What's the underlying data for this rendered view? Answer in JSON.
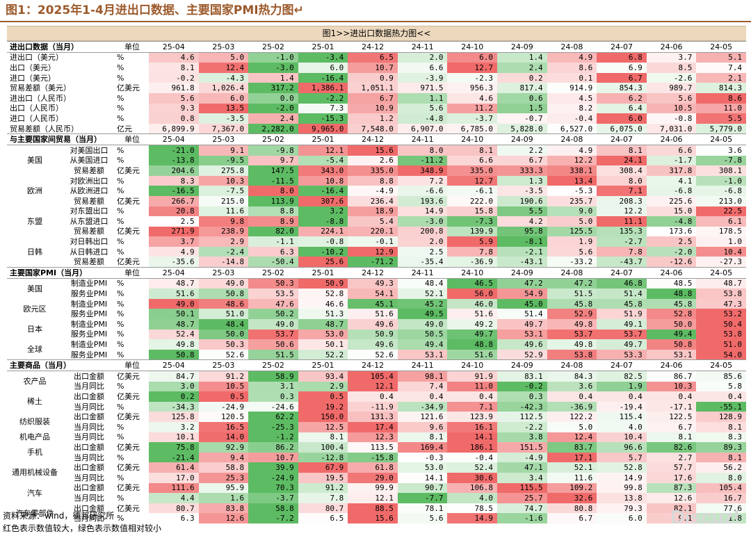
{
  "header": {
    "figure_title": "图1：2025年1-4月进出口数据、主要国家PMI热力图↵"
  },
  "table_title": "图1>>进出口数据热力图<<",
  "months": [
    "25-04",
    "25-03",
    "25-02",
    "25-01",
    "24-12",
    "24-11",
    "24-10",
    "24-09",
    "24-08",
    "24-07",
    "24-06",
    "24-05"
  ],
  "sections": [
    {
      "title": "进出口数据（当月）",
      "unit_header": "单位",
      "rows": [
        {
          "label": "进出口（美元）",
          "unit": "%",
          "values": [
            "4.6",
            "5.0",
            "-1.0",
            "-3.4",
            "6.5",
            "2.0",
            "6.0",
            "1.4",
            "4.9",
            "6.8",
            "3.7",
            "5.1"
          ]
        },
        {
          "label": "出口（美元）",
          "unit": "%",
          "values": [
            "8.1",
            "12.4",
            "-3.0",
            "6.0",
            "10.7",
            "6.6",
            "12.7",
            "2.4",
            "8.6",
            "6.9",
            "8.5",
            "7.4"
          ]
        },
        {
          "label": "进口（美元）",
          "unit": "%",
          "values": [
            "-0.2",
            "-4.3",
            "1.4",
            "-16.4",
            "0.9",
            "-3.9",
            "-2.3",
            "0.2",
            "0.1",
            "6.7",
            "-2.6",
            "2.1"
          ]
        },
        {
          "label": "贸易差额（美元）",
          "unit": "亿美元",
          "values": [
            "961.8",
            "1,026.4",
            "317.2",
            "1,386.1",
            "1,051.1",
            "971.5",
            "956.3",
            "817.4",
            "914.9",
            "854.3",
            "989.7",
            "814.3"
          ]
        },
        {
          "label": "进出口（人民币）",
          "unit": "%",
          "values": [
            "5.6",
            "6.0",
            "0.0",
            "-2.2",
            "6.7",
            "1.1",
            "4.6",
            "0.6",
            "4.5",
            "6.2",
            "5.6",
            "8.6"
          ]
        },
        {
          "label": "出口（人民币）",
          "unit": "%",
          "values": [
            "9.3",
            "13.5",
            "-2.0",
            "7.3",
            "10.9",
            "5.6",
            "11.2",
            "1.5",
            "8.2",
            "6.4",
            "10.5",
            "11.0"
          ]
        },
        {
          "label": "进口（人民币）",
          "unit": "%",
          "values": [
            "0.8",
            "-3.5",
            "2.4",
            "-15.3",
            "1.2",
            "-4.8",
            "-3.7",
            "-0.7",
            "-0.4",
            "6.0",
            "-0.8",
            "5.5"
          ]
        },
        {
          "label": "贸易差额（人民币）",
          "unit": "亿元",
          "values": [
            "6,899.9",
            "7,367.0",
            "2,282.0",
            "9,965.0",
            "7,548.0",
            "6,907.0",
            "6,785.0",
            "5,828.0",
            "6,527.0",
            "6,075.0",
            "7,031.0",
            "5,779.0"
          ]
        }
      ]
    },
    {
      "title": "与主要国家间贸易（当月）",
      "unit_header": "单位",
      "rows": [
        {
          "group": "美国",
          "label": "对美国出口",
          "unit": "%",
          "values": [
            "-21.0",
            "9.1",
            "-9.8",
            "12.1",
            "15.6",
            "8.0",
            "8.1",
            "2.2",
            "4.9",
            "8.1",
            "6.6",
            "3.6"
          ]
        },
        {
          "group": "",
          "label": "从美国进口",
          "unit": "%",
          "values": [
            "-13.8",
            "-9.5",
            "9.7",
            "-5.4",
            "2.6",
            "-11.2",
            "6.6",
            "6.7",
            "12.2",
            "24.1",
            "-1.7",
            "-7.8"
          ]
        },
        {
          "group": "",
          "label": "贸易差额",
          "unit": "亿美元",
          "values": [
            "204.6",
            "275.8",
            "147.5",
            "343.0",
            "335.0",
            "348.9",
            "335.0",
            "333.3",
            "338.1",
            "308.4",
            "317.8",
            "308.1"
          ]
        },
        {
          "group": "欧洲",
          "label": "对欧洲出口",
          "unit": "%",
          "values": [
            "8.3",
            "10.3",
            "-11.5",
            "10.8",
            "8.8",
            "7.2",
            "12.7",
            "1.3",
            "13.4",
            "8.0",
            "4.1",
            "-1.0"
          ]
        },
        {
          "group": "",
          "label": "从欧洲进口",
          "unit": "%",
          "values": [
            "-16.5",
            "-7.5",
            "8.0",
            "-16.4",
            "-4.9",
            "-6.6",
            "-6.1",
            "-3.5",
            "-5.3",
            "7.1",
            "-6.8",
            "-6.8"
          ]
        },
        {
          "group": "",
          "label": "贸易差额",
          "unit": "亿美元",
          "values": [
            "266.7",
            "215.0",
            "113.9",
            "307.6",
            "236.4",
            "193.6",
            "222.0",
            "190.6",
            "235.7",
            "208.3",
            "225.6",
            "213.0"
          ]
        },
        {
          "group": "东盟",
          "label": "对东盟出口",
          "unit": "%",
          "values": [
            "20.8",
            "11.6",
            "8.8",
            "3.2",
            "18.9",
            "14.9",
            "15.8",
            "5.5",
            "9.0",
            "12.2",
            "15.0",
            "22.5"
          ]
        },
        {
          "group": "",
          "label": "从东盟进口",
          "unit": "%",
          "values": [
            "2.5",
            "9.8",
            "8.9",
            "-8.8",
            "5.4",
            "-3.0",
            "-7.3",
            "4.2",
            "5.0",
            "11.1",
            "-4.8",
            "6.1"
          ]
        },
        {
          "group": "",
          "label": "贸易差额",
          "unit": "亿美元",
          "values": [
            "271.9",
            "238.9",
            "82.0",
            "224.1",
            "220.1",
            "200.8",
            "139.9",
            "95.8",
            "125.5",
            "135.3",
            "173.6",
            "178.5"
          ]
        },
        {
          "group": "日韩",
          "label": "对日韩出口",
          "unit": "%",
          "values": [
            "3.7",
            "2.9",
            "-1.1",
            "-0.8",
            "-0.1",
            "2.0",
            "5.9",
            "-8.1",
            "1.9",
            "-2.7",
            "2.5",
            "1.0"
          ]
        },
        {
          "group": "",
          "label": "从日韩进口",
          "unit": "%",
          "values": [
            "4.9",
            "-2.4",
            "6.3",
            "-10.2",
            "12.9",
            "2.5",
            "7.8",
            "-2.1",
            "5.6",
            "7.8",
            "-2.0",
            "10.4"
          ]
        },
        {
          "group": "",
          "label": "贸易差额",
          "unit": "亿美元",
          "values": [
            "-35.6",
            "-14.8",
            "-50.4",
            "25.6",
            "-71.2",
            "-35.4",
            "-36.9",
            "-43.1",
            "-33.2",
            "-43.7",
            "-12.6",
            "-27.3"
          ]
        }
      ]
    },
    {
      "title": "主要国家PMI（当月）",
      "unit_header": "单位",
      "rows": [
        {
          "group": "美国",
          "label": "制造业PMI",
          "unit": "%",
          "values": [
            "48.7",
            "49.0",
            "50.3",
            "50.9",
            "49.3",
            "48.4",
            "46.5",
            "47.2",
            "47.2",
            "46.8",
            "48.5",
            "48.7"
          ]
        },
        {
          "group": "",
          "label": "服务业PMI",
          "unit": "%",
          "values": [
            "51.6",
            "50.8",
            "53.5",
            "52.8",
            "54.1",
            "52.1",
            "56.0",
            "54.9",
            "51.5",
            "51.4",
            "48.8",
            "53.8"
          ]
        },
        {
          "group": "欧元区",
          "label": "制造业PMI",
          "unit": "%",
          "values": [
            "49.0",
            "48.6",
            "47.6",
            "46.6",
            "45.1",
            "45.2",
            "46.0",
            "45.0",
            "45.8",
            "45.8",
            "45.8",
            "47.3"
          ]
        },
        {
          "group": "",
          "label": "服务业PMI",
          "unit": "%",
          "values": [
            "50.1",
            "51.0",
            "50.2",
            "51.3",
            "51.6",
            "49.5",
            "51.6",
            "51.4",
            "52.9",
            "51.9",
            "52.8",
            "53.2"
          ]
        },
        {
          "group": "日本",
          "label": "制造业PMI",
          "unit": "%",
          "values": [
            "48.7",
            "48.4",
            "49.0",
            "48.7",
            "49.6",
            "49.0",
            "49.2",
            "49.7",
            "49.8",
            "49.1",
            "50.0",
            "50.4"
          ]
        },
        {
          "group": "",
          "label": "服务业PMI",
          "unit": "%",
          "values": [
            "52.4",
            "50.0",
            "53.7",
            "53.0",
            "50.9",
            "50.5",
            "49.7",
            "53.1",
            "53.7",
            "53.7",
            "49.4",
            "53.8"
          ]
        },
        {
          "group": "全球",
          "label": "制造业PMI",
          "unit": "%",
          "values": [
            "49.8",
            "50.3",
            "50.6",
            "50.1",
            "49.6",
            "49.4",
            "48.8",
            "49.6",
            "49.8",
            "49.7",
            "50.8",
            "51.0"
          ]
        },
        {
          "group": "",
          "label": "服务业PMI",
          "unit": "%",
          "values": [
            "50.8",
            "52.6",
            "51.5",
            "52.2",
            "52.6",
            "53.1",
            "51.6",
            "52.9",
            "53.8",
            "53.3",
            "53.1",
            "54.0"
          ]
        }
      ]
    },
    {
      "title": "主要商品（当月）",
      "unit_header": "单位",
      "rows": [
        {
          "group": "农产品",
          "label": "出口金额",
          "unit": "亿美元",
          "values": [
            "84.7",
            "91.2",
            "58.9",
            "93.4",
            "105.4",
            "98.1",
            "91.9",
            "83.1",
            "84.3",
            "82.5",
            "86.7",
            "85.6"
          ]
        },
        {
          "group": "",
          "label": "当月同比",
          "unit": "%",
          "values": [
            "3.0",
            "10.5",
            "3.1",
            "2.9",
            "12.1",
            "7.4",
            "11.0",
            "-0.2",
            "3.6",
            "1.9",
            "10.3",
            "5.8"
          ]
        },
        {
          "group": "稀土",
          "label": "出口金额",
          "unit": "亿美元",
          "values": [
            "0.2",
            "0.5",
            "0.3",
            "0.5",
            "0.4",
            "0.4",
            "0.4",
            "0.3",
            "0.4",
            "0.4",
            "0.4",
            "0.4"
          ]
        },
        {
          "group": "",
          "label": "当月同比",
          "unit": "%",
          "values": [
            "-34.3",
            "-24.9",
            "-24.6",
            "19.2",
            "-11.9",
            "-34.9",
            "7.1",
            "-42.3",
            "-36.9",
            "-19.4",
            "-17.1",
            "-55.1"
          ]
        },
        {
          "group": "纺织服装",
          "label": "出口金额",
          "unit": "亿美元",
          "values": [
            "125.8",
            "120.5",
            "62.2",
            "150.0",
            "131.3",
            "121.6",
            "123.9",
            "112.5",
            "122.2",
            "115.4",
            "122.5",
            "128.9"
          ]
        },
        {
          "group": "",
          "label": "当月同比",
          "unit": "%",
          "values": [
            "3.2",
            "16.5",
            "-25.3",
            "12.5",
            "17.4",
            "9.6",
            "16.1",
            "-2.2",
            "5.0",
            "4.0",
            "6.7",
            "8.1"
          ]
        },
        {
          "group": "机电产品",
          "label": "当月同比",
          "unit": "%",
          "values": [
            "10.1",
            "14.0",
            "-1.2",
            "8.1",
            "12.3",
            "8.1",
            "14.1",
            "3.8",
            "12.4",
            "10.4",
            "8.1",
            "8.3"
          ]
        },
        {
          "group": "手机",
          "label": "出口金额",
          "unit": "亿美元",
          "values": [
            "75.8",
            "92.9",
            "86.2",
            "100.4",
            "113.5",
            "169.4",
            "186.1",
            "151.5",
            "83.7",
            "96.6",
            "82.6",
            "89.3"
          ]
        },
        {
          "group": "",
          "label": "当月同比",
          "unit": "%",
          "values": [
            "-21.4",
            "9.4",
            "10.7",
            "-12.8",
            "-15.8",
            "-0.3",
            "-0.4",
            "-4.9",
            "17.1",
            "5.7",
            "2.7",
            "8.1"
          ]
        },
        {
          "group": "通用机械设备",
          "label": "出口金额",
          "unit": "亿美元",
          "values": [
            "61.4",
            "58.8",
            "39.9",
            "67.9",
            "61.8",
            "53.0",
            "52.4",
            "47.1",
            "52.1",
            "52.8",
            "57.7",
            "56.2"
          ]
        },
        {
          "group": "",
          "label": "当月同比",
          "unit": "%",
          "values": [
            "17.0",
            "25.3",
            "-24.9",
            "19.5",
            "29.0",
            "14.1",
            "30.6",
            "3.4",
            "11.6",
            "14.9",
            "17.6",
            "8.0"
          ]
        },
        {
          "group": "汽车",
          "label": "出口金额",
          "unit": "亿美元",
          "values": [
            "111.6",
            "95.9",
            "70.3",
            "91.2",
            "99.9",
            "90.7",
            "106.8",
            "115.5",
            "109.2",
            "99.8",
            "87.3",
            "105.4"
          ]
        },
        {
          "group": "",
          "label": "当月同比",
          "unit": "%",
          "values": [
            "4.4",
            "1.6",
            "-3.7",
            "7.8",
            "12.1",
            "-7.7",
            "4.0",
            "25.7",
            "32.6",
            "13.8",
            "12.6",
            "16.7"
          ]
        },
        {
          "group": "汽车零部件",
          "label": "出口金额",
          "unit": "亿美元",
          "values": [
            "80.7",
            "83.8",
            "58.8",
            "80.7",
            "88.5",
            "78.1",
            "78.5",
            "74.7",
            "80.8",
            "79.3",
            "82.1",
            "77.6"
          ]
        },
        {
          "group": "",
          "label": "当月同比",
          "unit": "%",
          "values": [
            "6.3",
            "12.6",
            "-7.2",
            "6.5",
            "15.6",
            "5.6",
            "14.9",
            "-1.6",
            "6.7",
            "6.0",
            "9.1",
            "1.8"
          ]
        }
      ]
    }
  ],
  "footer": {
    "source": "资料来源：wind，德邦研究所",
    "note": "红色表示数值较大，绿色表示数值相对较小"
  },
  "watermark": "Discuz!",
  "colors": {
    "accent": "#9c5a2c",
    "header_bg": "#ecd8bd",
    "high": "#f06a6a",
    "low": "#5dbb63",
    "mid": "#ffffff"
  }
}
